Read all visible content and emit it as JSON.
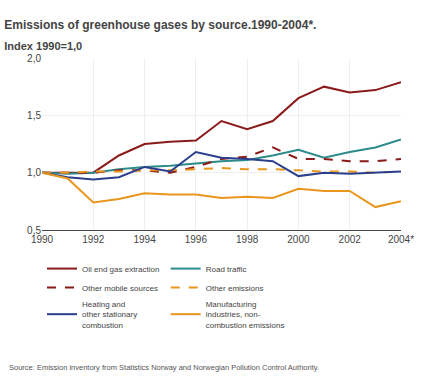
{
  "chart_data": {
    "type": "line",
    "title": "Emissions of greenhouse gases by source.1990-2004*.",
    "subtitle": "Index 1990=1,0",
    "annotations": [
      "Source: Emission inventory from Statistics Norway and Norwegian Pollution Control Authority."
    ],
    "x": [
      1990,
      1991,
      1992,
      1993,
      1994,
      1995,
      1996,
      1997,
      1998,
      1999,
      2000,
      2001,
      2002,
      2003,
      2004
    ],
    "series": [
      {
        "name": "Oil end gas extraction",
        "color": "#8B1A1A",
        "line_style": "solid",
        "values": [
          1.0,
          1.0,
          1.0,
          1.15,
          1.25,
          1.27,
          1.28,
          1.45,
          1.38,
          1.45,
          1.65,
          1.75,
          1.7,
          1.72,
          1.79
        ]
      },
      {
        "name": "Road traffic",
        "color": "#2E8B8B",
        "line_style": "solid",
        "values": [
          1.0,
          0.99,
          1.0,
          1.03,
          1.05,
          1.06,
          1.08,
          1.1,
          1.11,
          1.15,
          1.2,
          1.13,
          1.18,
          1.22,
          1.29
        ]
      },
      {
        "name": "Other mobile sources",
        "color": "#8B1A1A",
        "line_style": "dashed",
        "values": [
          1.0,
          1.0,
          1.0,
          1.02,
          1.02,
          1.0,
          1.05,
          1.12,
          1.14,
          1.22,
          1.12,
          1.12,
          1.1,
          1.1,
          1.12
        ]
      },
      {
        "name": "Other emissions",
        "color": "#E8961E",
        "line_style": "dashed",
        "values": [
          1.0,
          1.0,
          1.01,
          1.01,
          1.02,
          1.02,
          1.03,
          1.04,
          1.03,
          1.03,
          1.02,
          1.01,
          1.01,
          1.0,
          1.01
        ]
      },
      {
        "name": "Heating and\nother stationary\ncombustion",
        "color": "#2B3F8C",
        "line_style": "solid",
        "values": [
          1.0,
          0.96,
          0.94,
          0.96,
          1.05,
          1.01,
          1.18,
          1.13,
          1.12,
          1.1,
          0.97,
          1.0,
          0.99,
          1.0,
          1.01
        ]
      },
      {
        "name": "Manufacturing\nindustries, non-\ncombustion emissions",
        "color": "#E8961E",
        "line_style": "solid",
        "values": [
          1.0,
          0.95,
          0.74,
          0.77,
          0.82,
          0.81,
          0.81,
          0.78,
          0.79,
          0.78,
          0.86,
          0.84,
          0.84,
          0.7,
          0.75
        ]
      }
    ],
    "xlim": [
      1990,
      2004
    ],
    "xticks": [
      1990,
      1992,
      1994,
      1996,
      1998,
      2000,
      2002,
      {
        "value": 2004,
        "label": "2004*"
      }
    ],
    "ylim": [
      0.5,
      2.0
    ],
    "yticks": [
      {
        "value": 0.5,
        "label": "0,5"
      },
      {
        "value": 1.0,
        "label": "1,0"
      },
      {
        "value": 1.5,
        "label": "1,5"
      },
      {
        "value": 2.0,
        "label": "2,0"
      }
    ],
    "grid": true,
    "legend": "bottom"
  }
}
